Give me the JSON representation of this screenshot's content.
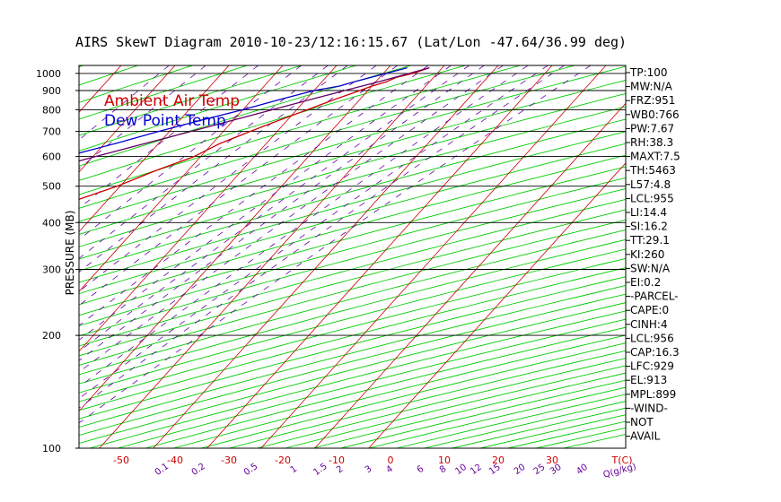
{
  "title": "AIRS SkewT Diagram 2010-10-23/12:16:15.67 (Lat/Lon -47.64/36.99 deg)",
  "legend": {
    "ambient": "Ambient Air Temp",
    "dewpoint": "Dew Point Temp"
  },
  "colors": {
    "ambient": "#cc0000",
    "dewpoint": "#0000cc",
    "parcel": "#660066",
    "isotherm": "#cc0000",
    "dry_adiabat": "#00cc00",
    "mixing_ratio": "#6600aa",
    "frame": "#000000",
    "tick_bottom": "#cc0000",
    "tick_mixing": "#660099"
  },
  "indices": [
    "TP:100",
    "MW:N/A",
    "FRZ:951",
    "WB0:766",
    "PW:7.67",
    "RH:38.3",
    "MAXT:7.5",
    "TH:5463",
    "L57:4.8",
    "LCL:955",
    "LI:14.4",
    "SI:16.2",
    "TT:29.1",
    "KI:260",
    "SW:N/A",
    "EI:0.2",
    "-PARCEL-",
    "CAPE:0",
    "CINH:4",
    "LCL:956",
    "CAP:16.3",
    "LFC:929",
    "EL:913",
    "MPL:899",
    "-WIND-",
    "NOT",
    "AVAIL"
  ],
  "chart_data": {
    "type": "line",
    "title": "AIRS SkewT Diagram 2010-10-23/12:16:15.67 (Lat/Lon -47.64/36.99 deg)",
    "ylabel": "PRESSURE (MB)",
    "xlabel": "T(C)",
    "mixing_ratio_label": "Q(g/kg)",
    "y_scale": "log",
    "ylim": [
      1050,
      100
    ],
    "pressure_ticks": [
      100,
      200,
      300,
      400,
      500,
      600,
      700,
      800,
      900,
      1000
    ],
    "pressure_lines": [
      200,
      300,
      400,
      500,
      600,
      700,
      800,
      900,
      1000
    ],
    "top_temp_ticks": [
      -120,
      -110,
      -100,
      -90,
      -80,
      -70,
      -60,
      -50,
      -40
    ],
    "bottom_temp_ticks": [
      -50,
      -40,
      -30,
      -20,
      -10,
      0,
      10,
      20,
      30
    ],
    "mixing_ratio_ticks": [
      "0.1",
      "0.2",
      "0.5",
      "1",
      "1.5",
      "2",
      "3",
      "4",
      "6",
      "8",
      "10",
      "12",
      "15",
      "20",
      "25",
      "30",
      "40"
    ],
    "grid": true,
    "legend_position": "top-left",
    "series": [
      {
        "name": "Ambient Air Temp",
        "pressure": [
          1035,
          1000,
          975,
          950,
          925,
          900,
          850,
          800,
          750,
          700,
          650,
          600,
          550,
          500,
          450,
          400,
          350,
          300,
          250,
          200,
          175,
          150,
          125,
          100
        ],
        "temperature": [
          7.6,
          5.5,
          3.0,
          2.0,
          0.0,
          -1.5,
          -4.8,
          -8.0,
          -11.5,
          -15.0,
          -18.6,
          -21.2,
          -26.0,
          -30.5,
          -37.0,
          -43.5,
          -50.0,
          -57.5,
          -59.5,
          -56.0,
          -54.5,
          -53.0,
          -52.0,
          -51.0
        ]
      },
      {
        "name": "Dew Point Temp",
        "pressure": [
          1035,
          1000,
          950,
          925,
          900,
          850,
          800,
          750,
          700,
          650,
          600,
          550,
          500,
          450,
          400,
          350,
          300,
          250,
          200,
          175,
          150,
          125,
          100
        ],
        "temperature": [
          3.5,
          0.5,
          -4.0,
          -6.0,
          -10.0,
          -15.0,
          -20.0,
          -26.0,
          -32.0,
          -38.0,
          -45.0,
          -53.0,
          -61.0,
          -63.5,
          -66.5,
          -73.0,
          -79.5,
          -84.0,
          -95.0,
          -100.0,
          -106.0,
          -107.0,
          -108.0
        ]
      },
      {
        "name": "",
        "pressure": [
          1035,
          1000,
          955,
          900,
          850,
          800,
          700,
          600,
          500,
          400,
          300,
          250,
          200,
          150,
          100
        ],
        "temperature": [
          7.6,
          4.8,
          1.0,
          -4.3,
          -9.3,
          -14.5,
          -26.0,
          -39.5,
          -55.0,
          -72.0,
          -94.0,
          -106.0,
          -119.0,
          -134.0,
          -153.0
        ]
      }
    ]
  }
}
